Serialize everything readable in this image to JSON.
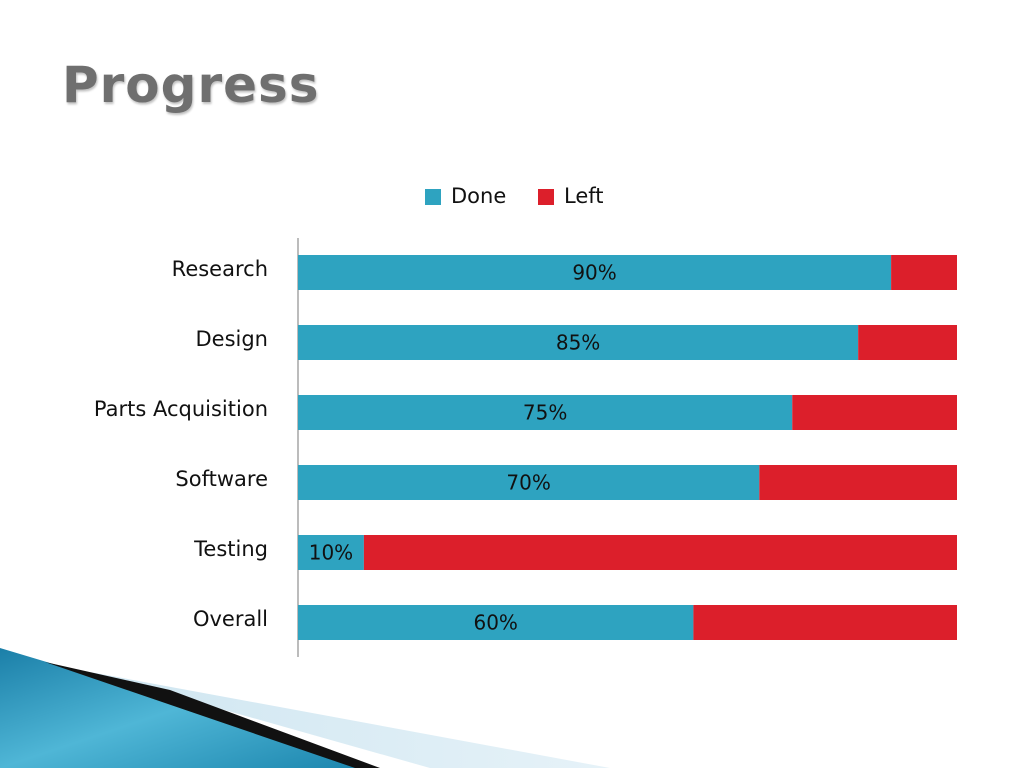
{
  "slide": {
    "title": "Progress"
  },
  "colors": {
    "done": "#2ea3c0",
    "left": "#dc1f2b",
    "title": "#6f6f6f",
    "axis": "#a6a6a6"
  },
  "chart_data": {
    "type": "bar",
    "orientation": "horizontal",
    "stacked": true,
    "categories": [
      "Research",
      "Design",
      "Parts Acquisition",
      "Software",
      "Testing",
      "Overall"
    ],
    "series": [
      {
        "name": "Done",
        "values": [
          90,
          85,
          75,
          70,
          10,
          60
        ]
      },
      {
        "name": "Left",
        "values": [
          10,
          15,
          25,
          30,
          90,
          40
        ]
      }
    ],
    "data_labels": [
      "90%",
      "85%",
      "75%",
      "70%",
      "10%",
      "60%"
    ],
    "xlim": [
      0,
      100
    ],
    "legend_position": "top",
    "grid": false,
    "title": "",
    "xlabel": "",
    "ylabel": ""
  }
}
